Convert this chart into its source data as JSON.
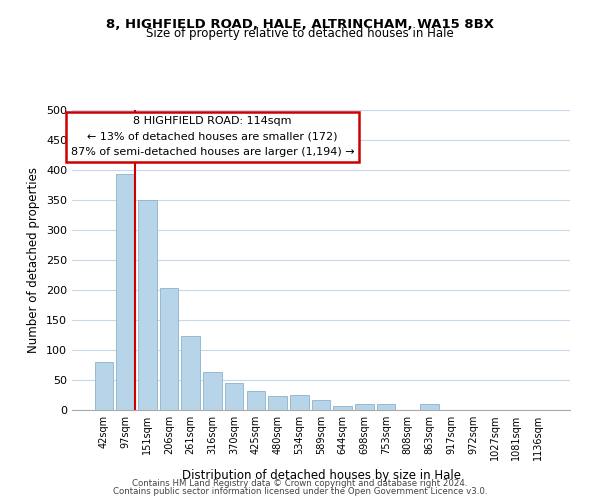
{
  "title1": "8, HIGHFIELD ROAD, HALE, ALTRINCHAM, WA15 8BX",
  "title2": "Size of property relative to detached houses in Hale",
  "xlabel": "Distribution of detached houses by size in Hale",
  "ylabel": "Number of detached properties",
  "bar_labels": [
    "42sqm",
    "97sqm",
    "151sqm",
    "206sqm",
    "261sqm",
    "316sqm",
    "370sqm",
    "425sqm",
    "480sqm",
    "534sqm",
    "589sqm",
    "644sqm",
    "698sqm",
    "753sqm",
    "808sqm",
    "863sqm",
    "917sqm",
    "972sqm",
    "1027sqm",
    "1081sqm",
    "1136sqm"
  ],
  "bar_values": [
    80,
    393,
    350,
    204,
    123,
    63,
    45,
    31,
    24,
    25,
    16,
    6,
    10,
    10,
    0,
    10,
    0,
    0,
    0,
    0,
    0
  ],
  "bar_color": "#b8d4e8",
  "bar_edge_color": "#8ab4cc",
  "vline_color": "#cc0000",
  "annotation_box_text": "8 HIGHFIELD ROAD: 114sqm\n← 13% of detached houses are smaller (172)\n87% of semi-detached houses are larger (1,194) →",
  "annotation_box_edge_color": "#cc0000",
  "ylim": [
    0,
    500
  ],
  "yticks": [
    0,
    50,
    100,
    150,
    200,
    250,
    300,
    350,
    400,
    450,
    500
  ],
  "footer1": "Contains HM Land Registry data © Crown copyright and database right 2024.",
  "footer2": "Contains public sector information licensed under the Open Government Licence v3.0.",
  "background_color": "#ffffff",
  "grid_color": "#c8d8e8"
}
